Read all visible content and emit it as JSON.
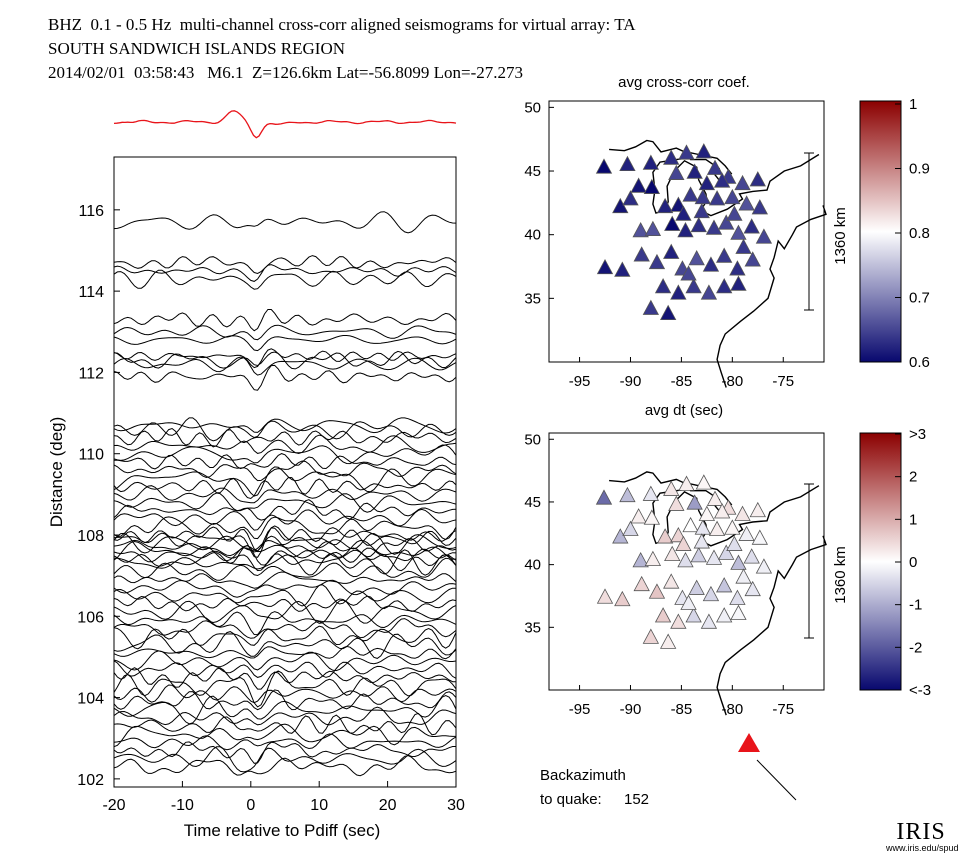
{
  "header": {
    "line1": "BHZ  0.1 - 0.5 Hz  multi-channel cross-corr aligned seismograms for virtual array: TA",
    "line2": "SOUTH SANDWICH ISLANDS REGION",
    "line3": "2014/02/01  03:58:43   M6.1  Z=126.6km Lat=-56.8099 Lon=-27.273"
  },
  "colors": {
    "stack": "#e8141a",
    "trace": "#000000",
    "station_outline": "#555555",
    "arrow": "#e8141a"
  },
  "chart_data": [
    {
      "type": "line",
      "name": "seismogram record section",
      "xlabel": "Time relative to Pdiff (sec)",
      "ylabel": "Distance (deg)",
      "xlim": [
        -20,
        30
      ],
      "ylim": [
        101.8,
        117.3
      ],
      "xticks": [
        "-20",
        "-10",
        "0",
        "10",
        "20",
        "30"
      ],
      "yticks": [
        "102",
        "104",
        "106",
        "108",
        "110",
        "112",
        "114",
        "116"
      ],
      "trace_distances_deg": [
        115.7,
        114.7,
        114.5,
        114.3,
        113.3,
        113.0,
        112.8,
        112.4,
        112.3,
        112.2,
        111.9,
        110.7,
        110.6,
        110.4,
        110.2,
        110.0,
        109.8,
        109.6,
        109.4,
        109.2,
        109.0,
        108.8,
        108.6,
        108.4,
        108.2,
        108.0,
        107.9,
        107.8,
        107.7,
        107.6,
        107.5,
        107.4,
        107.3,
        107.1,
        106.9,
        106.7,
        106.5,
        106.3,
        106.1,
        105.9,
        105.7,
        105.5,
        105.3,
        105.1,
        104.9,
        104.7,
        104.5,
        104.3,
        104.1,
        103.9,
        103.7,
        103.5,
        103.3,
        103.1,
        102.9,
        102.7,
        102.5,
        102.3
      ],
      "grid": false
    },
    {
      "type": "scatter",
      "title": "avg cross-corr coef.",
      "xlim": [
        -98,
        -71
      ],
      "ylim": [
        30,
        50.5
      ],
      "xticks": [
        "-95",
        "-90",
        "-85",
        "-80",
        "-75"
      ],
      "yticks": [
        "35",
        "40",
        "45",
        "50"
      ],
      "scalebar_label": "1360 km",
      "colorbar": {
        "min": 0.6,
        "max": 1.0,
        "ticks": [
          "1",
          "0.9",
          "0.8",
          "0.7",
          "0.6"
        ]
      },
      "stations": [
        [
          -92.6,
          45.3,
          0.6
        ],
        [
          -90.3,
          45.5,
          0.62
        ],
        [
          -88.0,
          45.6,
          0.62
        ],
        [
          -86.0,
          46.0,
          0.63
        ],
        [
          -84.5,
          46.4,
          0.64
        ],
        [
          -82.8,
          46.5,
          0.62
        ],
        [
          -89.2,
          43.8,
          0.61
        ],
        [
          -87.9,
          43.7,
          0.6
        ],
        [
          -85.5,
          44.8,
          0.65
        ],
        [
          -83.7,
          44.9,
          0.62
        ],
        [
          -81.7,
          45.2,
          0.64
        ],
        [
          -80.4,
          44.5,
          0.64
        ],
        [
          -79.0,
          44.0,
          0.65
        ],
        [
          -77.5,
          44.3,
          0.63
        ],
        [
          -91.0,
          42.2,
          0.61
        ],
        [
          -90.0,
          42.8,
          0.63
        ],
        [
          -86.6,
          42.2,
          0.62
        ],
        [
          -85.3,
          42.3,
          0.61
        ],
        [
          -84.1,
          43.1,
          0.64
        ],
        [
          -82.9,
          42.9,
          0.64
        ],
        [
          -81.5,
          42.8,
          0.64
        ],
        [
          -80.0,
          42.9,
          0.65
        ],
        [
          -78.6,
          42.4,
          0.66
        ],
        [
          -77.3,
          42.1,
          0.64
        ],
        [
          -89.0,
          40.3,
          0.66
        ],
        [
          -87.8,
          40.4,
          0.66
        ],
        [
          -85.9,
          40.8,
          0.6
        ],
        [
          -84.6,
          40.3,
          0.62
        ],
        [
          -83.3,
          40.7,
          0.63
        ],
        [
          -81.8,
          40.5,
          0.64
        ],
        [
          -80.6,
          40.9,
          0.65
        ],
        [
          -79.4,
          40.1,
          0.66
        ],
        [
          -78.1,
          40.6,
          0.63
        ],
        [
          -76.9,
          39.8,
          0.65
        ],
        [
          -92.5,
          37.4,
          0.61
        ],
        [
          -90.8,
          37.2,
          0.62
        ],
        [
          -88.9,
          38.4,
          0.64
        ],
        [
          -87.4,
          37.8,
          0.64
        ],
        [
          -86.0,
          38.6,
          0.62
        ],
        [
          -84.9,
          37.3,
          0.65
        ],
        [
          -83.5,
          38.1,
          0.66
        ],
        [
          -82.1,
          37.6,
          0.63
        ],
        [
          -80.8,
          38.3,
          0.64
        ],
        [
          -79.5,
          37.3,
          0.63
        ],
        [
          -78.0,
          38.0,
          0.65
        ],
        [
          -86.8,
          35.9,
          0.63
        ],
        [
          -85.3,
          35.4,
          0.62
        ],
        [
          -83.8,
          35.9,
          0.64
        ],
        [
          -82.3,
          35.4,
          0.65
        ],
        [
          -80.8,
          35.9,
          0.63
        ],
        [
          -79.4,
          36.1,
          0.62
        ],
        [
          -88.0,
          34.2,
          0.64
        ],
        [
          -86.3,
          33.8,
          0.61
        ],
        [
          -84.3,
          36.9,
          0.65
        ],
        [
          -81.0,
          44.2,
          0.63
        ],
        [
          -82.5,
          44.0,
          0.62
        ],
        [
          -83.0,
          41.8,
          0.64
        ],
        [
          -84.8,
          41.6,
          0.62
        ],
        [
          -79.8,
          41.6,
          0.65
        ],
        [
          -78.9,
          39.0,
          0.64
        ]
      ]
    },
    {
      "type": "scatter",
      "title": "avg dt (sec)",
      "xlim": [
        -98,
        -71
      ],
      "ylim": [
        30,
        50.5
      ],
      "xticks": [
        "-95",
        "-90",
        "-85",
        "-80",
        "-75"
      ],
      "yticks": [
        "35",
        "40",
        "45",
        "50"
      ],
      "scalebar_label": "1360 km",
      "colorbar": {
        "min": -3,
        "max": 3,
        "ticks": [
          ">3",
          "2",
          "1",
          "0",
          "-1",
          "-2",
          "<-3"
        ]
      },
      "stations": [
        [
          -92.6,
          45.3,
          -1.8
        ],
        [
          -90.3,
          45.5,
          -0.8
        ],
        [
          -88.0,
          45.6,
          -0.3
        ],
        [
          -86.0,
          46.0,
          0.3
        ],
        [
          -84.5,
          46.4,
          0.2
        ],
        [
          -82.8,
          46.5,
          0.1
        ],
        [
          -89.2,
          43.8,
          0.2
        ],
        [
          -87.9,
          43.7,
          0.1
        ],
        [
          -85.5,
          44.8,
          0.4
        ],
        [
          -83.7,
          44.9,
          -1.2
        ],
        [
          -81.7,
          45.2,
          0.2
        ],
        [
          -80.4,
          44.5,
          0.4
        ],
        [
          -79.0,
          44.0,
          0.3
        ],
        [
          -77.5,
          44.3,
          0.2
        ],
        [
          -91.0,
          42.2,
          -0.9
        ],
        [
          -90.0,
          42.8,
          -0.5
        ],
        [
          -86.6,
          42.2,
          0.6
        ],
        [
          -85.3,
          42.3,
          0.5
        ],
        [
          -84.1,
          43.1,
          0.0
        ],
        [
          -82.9,
          42.9,
          -0.3
        ],
        [
          -81.5,
          42.8,
          0.2
        ],
        [
          -80.0,
          42.9,
          0.1
        ],
        [
          -78.6,
          42.4,
          -0.2
        ],
        [
          -77.3,
          42.1,
          -0.1
        ],
        [
          -89.0,
          40.3,
          -0.9
        ],
        [
          -87.8,
          40.4,
          0.2
        ],
        [
          -85.9,
          40.8,
          0.3
        ],
        [
          -84.6,
          40.3,
          -0.4
        ],
        [
          -83.3,
          40.7,
          -0.6
        ],
        [
          -81.8,
          40.5,
          -0.3
        ],
        [
          -80.6,
          40.9,
          -0.5
        ],
        [
          -79.4,
          40.1,
          -0.8
        ],
        [
          -78.1,
          40.6,
          -0.4
        ],
        [
          -76.9,
          39.8,
          -0.2
        ],
        [
          -92.5,
          37.4,
          0.4
        ],
        [
          -90.8,
          37.2,
          0.6
        ],
        [
          -88.9,
          38.4,
          0.5
        ],
        [
          -87.4,
          37.8,
          0.7
        ],
        [
          -86.0,
          38.6,
          0.3
        ],
        [
          -84.9,
          37.3,
          -0.3
        ],
        [
          -83.5,
          38.1,
          -0.6
        ],
        [
          -82.1,
          37.6,
          -0.5
        ],
        [
          -80.8,
          38.3,
          -0.7
        ],
        [
          -79.5,
          37.3,
          -0.4
        ],
        [
          -78.0,
          38.0,
          -0.3
        ],
        [
          -86.8,
          35.9,
          0.6
        ],
        [
          -85.3,
          35.4,
          0.4
        ],
        [
          -83.8,
          35.9,
          -0.5
        ],
        [
          -82.3,
          35.4,
          -0.3
        ],
        [
          -80.8,
          35.9,
          -0.2
        ],
        [
          -79.4,
          36.1,
          -0.1
        ],
        [
          -88.0,
          34.2,
          0.5
        ],
        [
          -86.3,
          33.8,
          0.2
        ],
        [
          -84.3,
          36.9,
          -0.2
        ],
        [
          -81.0,
          44.2,
          0.2
        ],
        [
          -82.5,
          44.0,
          0.1
        ],
        [
          -83.0,
          41.8,
          -0.3
        ],
        [
          -84.8,
          41.6,
          0.5
        ],
        [
          -79.8,
          41.6,
          -0.4
        ],
        [
          -78.9,
          39.0,
          -0.2
        ]
      ]
    }
  ],
  "backazimuth": {
    "label_line1": "Backazimuth",
    "label_line2": "to quake:",
    "value": "152"
  },
  "logo": {
    "word": "IRIS",
    "url": "www.iris.edu/spud"
  }
}
